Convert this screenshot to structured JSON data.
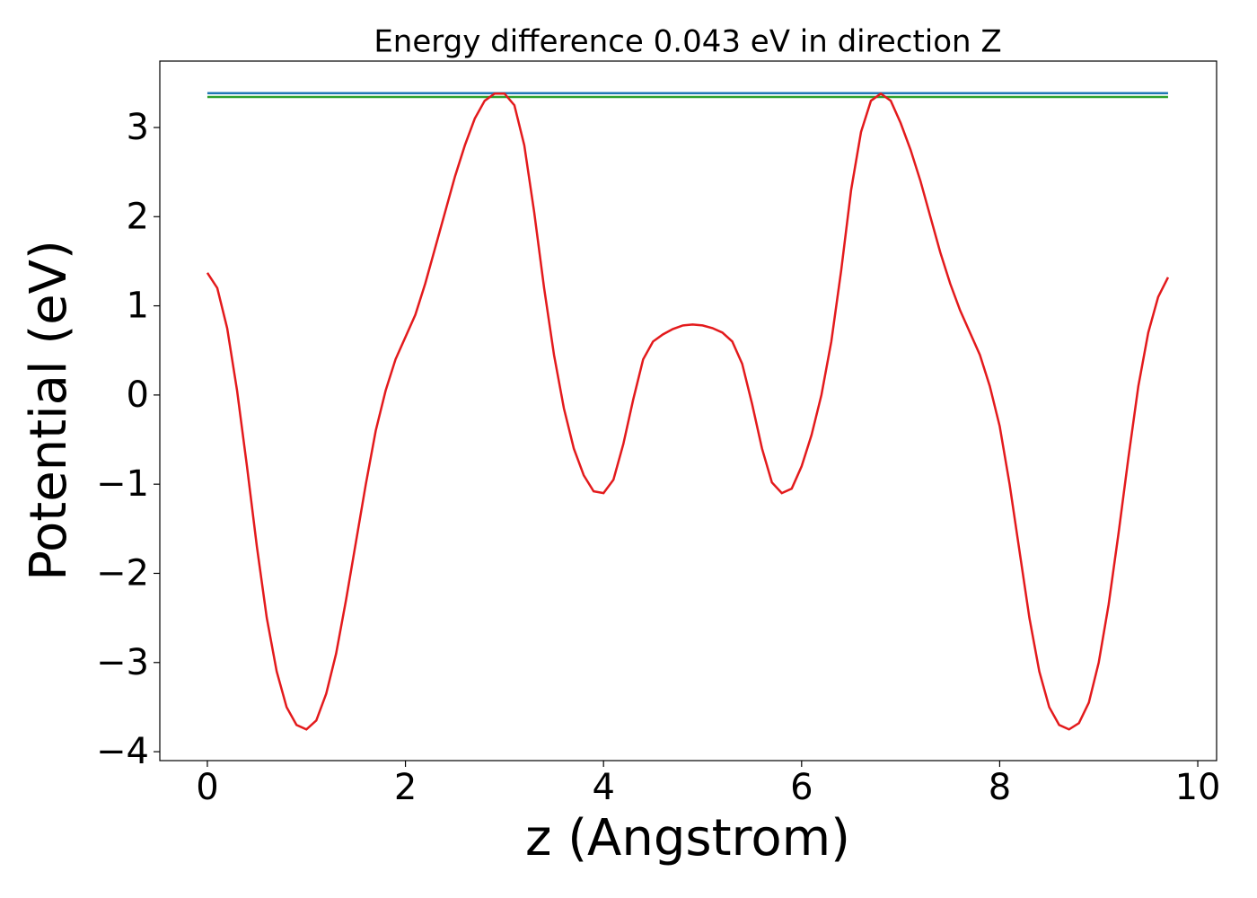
{
  "chart_data": {
    "type": "line",
    "title": "Energy difference 0.043 eV in direction Z",
    "xlabel": "z (Angstrom)",
    "ylabel": "Potential (eV)",
    "xlim": [
      -0.48,
      10.19
    ],
    "ylim": [
      -4.1,
      3.745
    ],
    "xticks": [
      0,
      2,
      4,
      6,
      8,
      10
    ],
    "yticks": [
      {
        "value": -4,
        "label": "−4"
      },
      {
        "value": -3,
        "label": "−3"
      },
      {
        "value": -2,
        "label": "−2"
      },
      {
        "value": -1,
        "label": "−1"
      },
      0,
      1,
      2,
      3
    ],
    "series": [
      {
        "color": "#1f77b4",
        "x": [
          0,
          9.7
        ],
        "values": [
          3.385,
          3.385
        ]
      },
      {
        "color": "#2ca02c",
        "x": [
          0,
          9.7
        ],
        "values": [
          3.342,
          3.342
        ]
      },
      {
        "color": "#e31a1c",
        "x": [
          0,
          0.1,
          0.2,
          0.3,
          0.4,
          0.5,
          0.6,
          0.7,
          0.8,
          0.9,
          1.0,
          1.1,
          1.2,
          1.3,
          1.4,
          1.5,
          1.6,
          1.7,
          1.8,
          1.9,
          2.0,
          2.1,
          2.2,
          2.3,
          2.4,
          2.5,
          2.6,
          2.7,
          2.8,
          2.9,
          3.0,
          3.1,
          3.2,
          3.3,
          3.4,
          3.5,
          3.6,
          3.7,
          3.8,
          3.9,
          4.0,
          4.1,
          4.2,
          4.3,
          4.4,
          4.5,
          4.6,
          4.7,
          4.8,
          4.9,
          5.0,
          5.1,
          5.2,
          5.3,
          5.4,
          5.5,
          5.6,
          5.7,
          5.8,
          5.9,
          6.0,
          6.1,
          6.2,
          6.3,
          6.4,
          6.5,
          6.6,
          6.7,
          6.8,
          6.9,
          7.0,
          7.1,
          7.2,
          7.3,
          7.4,
          7.5,
          7.6,
          7.7,
          7.8,
          7.9,
          8.0,
          8.1,
          8.2,
          8.3,
          8.4,
          8.5,
          8.6,
          8.7,
          8.8,
          8.9,
          9.0,
          9.1,
          9.2,
          9.3,
          9.4,
          9.5,
          9.6,
          9.7
        ],
        "values": [
          1.37,
          1.2,
          0.75,
          0.05,
          -0.8,
          -1.7,
          -2.5,
          -3.1,
          -3.5,
          -3.7,
          -3.75,
          -3.65,
          -3.35,
          -2.9,
          -2.3,
          -1.65,
          -1.0,
          -0.4,
          0.05,
          0.4,
          0.65,
          0.9,
          1.25,
          1.65,
          2.05,
          2.45,
          2.8,
          3.1,
          3.3,
          3.38,
          3.38,
          3.25,
          2.8,
          2.05,
          1.2,
          0.45,
          -0.15,
          -0.6,
          -0.9,
          -1.08,
          -1.1,
          -0.95,
          -0.55,
          -0.05,
          0.4,
          0.6,
          0.68,
          0.74,
          0.78,
          0.79,
          0.78,
          0.75,
          0.7,
          0.6,
          0.35,
          -0.1,
          -0.6,
          -0.98,
          -1.1,
          -1.05,
          -0.8,
          -0.45,
          0.0,
          0.6,
          1.4,
          2.3,
          2.95,
          3.3,
          3.38,
          3.3,
          3.05,
          2.75,
          2.4,
          2.0,
          1.6,
          1.25,
          0.95,
          0.7,
          0.45,
          0.1,
          -0.35,
          -1.0,
          -1.75,
          -2.5,
          -3.1,
          -3.5,
          -3.7,
          -3.75,
          -3.68,
          -3.45,
          -3.0,
          -2.35,
          -1.55,
          -0.7,
          0.1,
          0.7,
          1.1,
          1.32
        ]
      }
    ]
  }
}
